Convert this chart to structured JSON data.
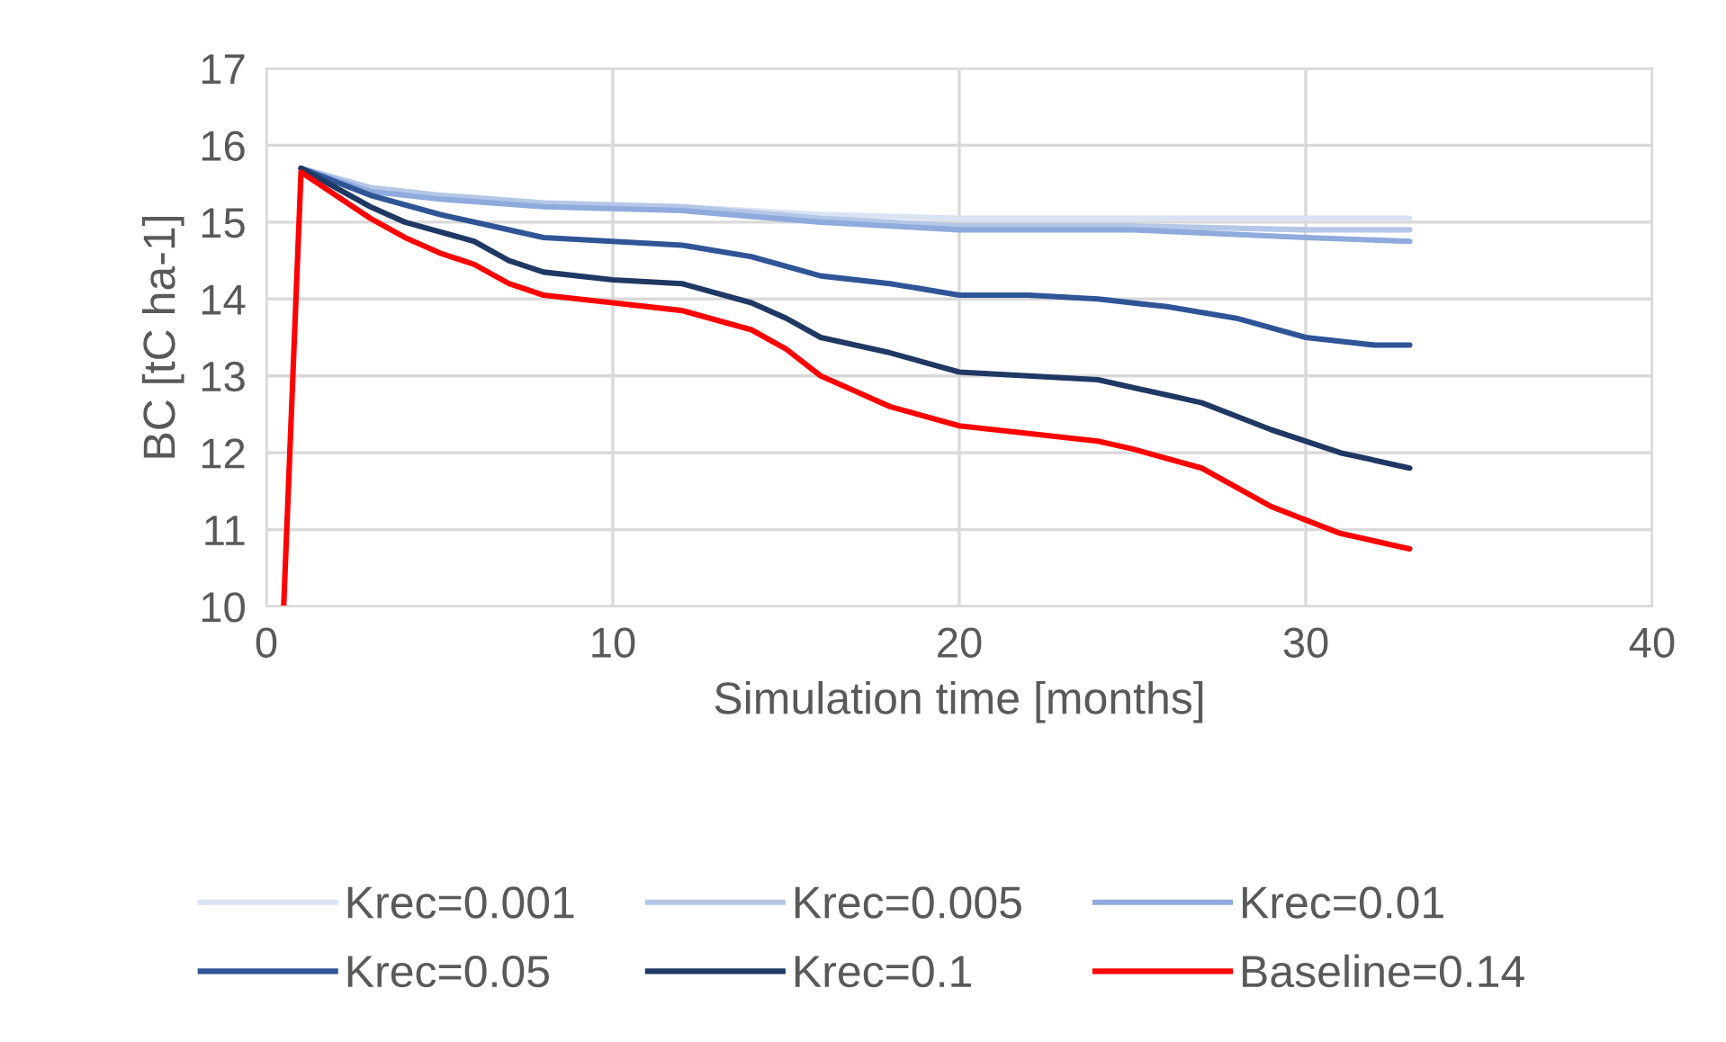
{
  "chart_data": {
    "type": "line",
    "xlabel": "Simulation time [months]",
    "ylabel": "BC [tC ha-1]",
    "xlim": [
      0,
      40
    ],
    "ylim": [
      10,
      17
    ],
    "xticks": [
      0,
      10,
      20,
      30,
      40
    ],
    "yticks": [
      10,
      11,
      12,
      13,
      14,
      15,
      16,
      17
    ],
    "grid": true,
    "legend": "bottom",
    "line_style": "solid",
    "marker": "none",
    "series": [
      {
        "name": "Krec=0.001",
        "color": "#dae3f3",
        "x": [
          1,
          3,
          5,
          8,
          12,
          16,
          20,
          25,
          30,
          33
        ],
        "values": [
          15.7,
          15.45,
          15.35,
          15.25,
          15.2,
          15.1,
          15.05,
          15.05,
          15.05,
          15.05
        ]
      },
      {
        "name": "Krec=0.005",
        "color": "#b4c7e7",
        "x": [
          1,
          3,
          5,
          8,
          12,
          16,
          20,
          25,
          30,
          33
        ],
        "values": [
          15.7,
          15.45,
          15.35,
          15.25,
          15.2,
          15.05,
          14.95,
          14.95,
          14.9,
          14.9
        ]
      },
      {
        "name": "Krec=0.01",
        "color": "#8faadc",
        "x": [
          1,
          3,
          5,
          8,
          12,
          16,
          20,
          25,
          30,
          33
        ],
        "values": [
          15.7,
          15.4,
          15.3,
          15.2,
          15.15,
          15.0,
          14.9,
          14.9,
          14.8,
          14.75
        ]
      },
      {
        "name": "Krec=0.05",
        "color": "#2f5597",
        "x": [
          1,
          3,
          5,
          6,
          8,
          10,
          12,
          14,
          16,
          18,
          20,
          22,
          24,
          26,
          28,
          30,
          32,
          33
        ],
        "values": [
          15.7,
          15.35,
          15.1,
          15.0,
          14.8,
          14.75,
          14.7,
          14.55,
          14.3,
          14.2,
          14.05,
          14.05,
          14.0,
          13.9,
          13.75,
          13.5,
          13.4,
          13.4
        ]
      },
      {
        "name": "Krec=0.1",
        "color": "#1f3864",
        "x": [
          1,
          3,
          4,
          6,
          7,
          8,
          10,
          12,
          14,
          15,
          16,
          18,
          20,
          22,
          24,
          26,
          27,
          29,
          31,
          33
        ],
        "values": [
          15.7,
          15.2,
          15.0,
          14.75,
          14.5,
          14.35,
          14.25,
          14.2,
          13.95,
          13.75,
          13.5,
          13.3,
          13.05,
          13.0,
          12.95,
          12.75,
          12.65,
          12.3,
          12.0,
          11.8
        ]
      },
      {
        "name": "Baseline=0.14",
        "color": "#ff0000",
        "x": [
          0.5,
          1,
          3,
          4,
          5,
          6,
          7,
          8,
          10,
          12,
          14,
          15,
          16,
          17,
          18,
          20,
          22,
          24,
          25,
          27,
          29,
          31,
          33
        ],
        "values": [
          10,
          15.65,
          15.05,
          14.8,
          14.6,
          14.45,
          14.2,
          14.05,
          13.95,
          13.85,
          13.6,
          13.35,
          13.0,
          12.8,
          12.6,
          12.35,
          12.25,
          12.15,
          12.05,
          11.8,
          11.3,
          10.95,
          10.75
        ]
      }
    ]
  }
}
